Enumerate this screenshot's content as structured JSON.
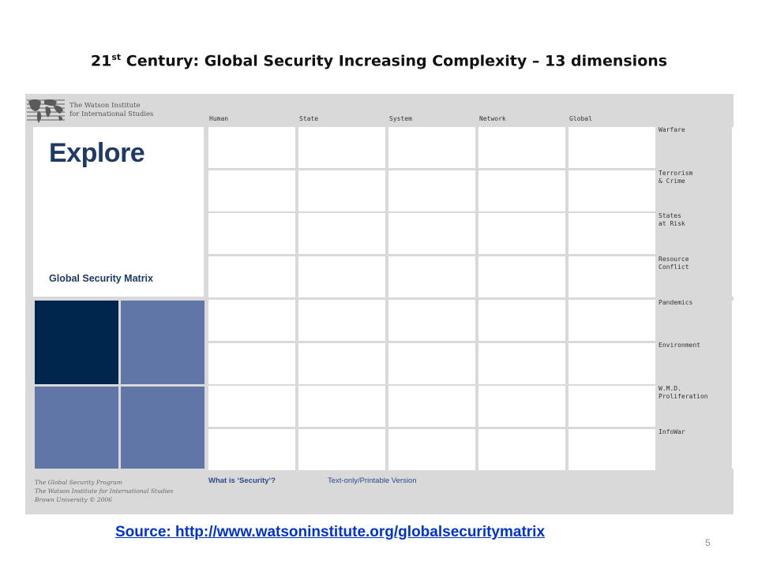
{
  "slide": {
    "title_prefix": "21",
    "title_superscript": "st",
    "title_rest": " Century:  Global Security Increasing Complexity – 13 dimensions",
    "source_text": "Source:   http://www.watsoninstitute.org/globalsecuritymatrix",
    "page_number": "5"
  },
  "site": {
    "institute_name_line1": "The Watson Institute",
    "institute_name_line2": "for International Studies",
    "explore_title": "Explore",
    "explore_subtitle": "Global Security Matrix",
    "columns": [
      "Human",
      "State",
      "System",
      "Network",
      "Global"
    ],
    "rows": [
      "Warfare",
      "Terrorism\n& Crime",
      "States\nat Risk",
      "Resource\nConflict",
      "Pandemics",
      "Environment",
      "W.M.D.\nProliferation",
      "InfoWar"
    ],
    "footer_line1": "The Global Security Program",
    "footer_line2": "The Watson Institute for International Studies",
    "footer_line3": "Brown University © 2006",
    "link_security": "What is ‘Security’?",
    "link_text_only": "Text-only/Printable Version"
  },
  "colors": {
    "title_navy": "#1f3a66",
    "tile_dark": "#00264d",
    "tile_blue": "#5f76a6",
    "source_link": "#0033cc"
  }
}
